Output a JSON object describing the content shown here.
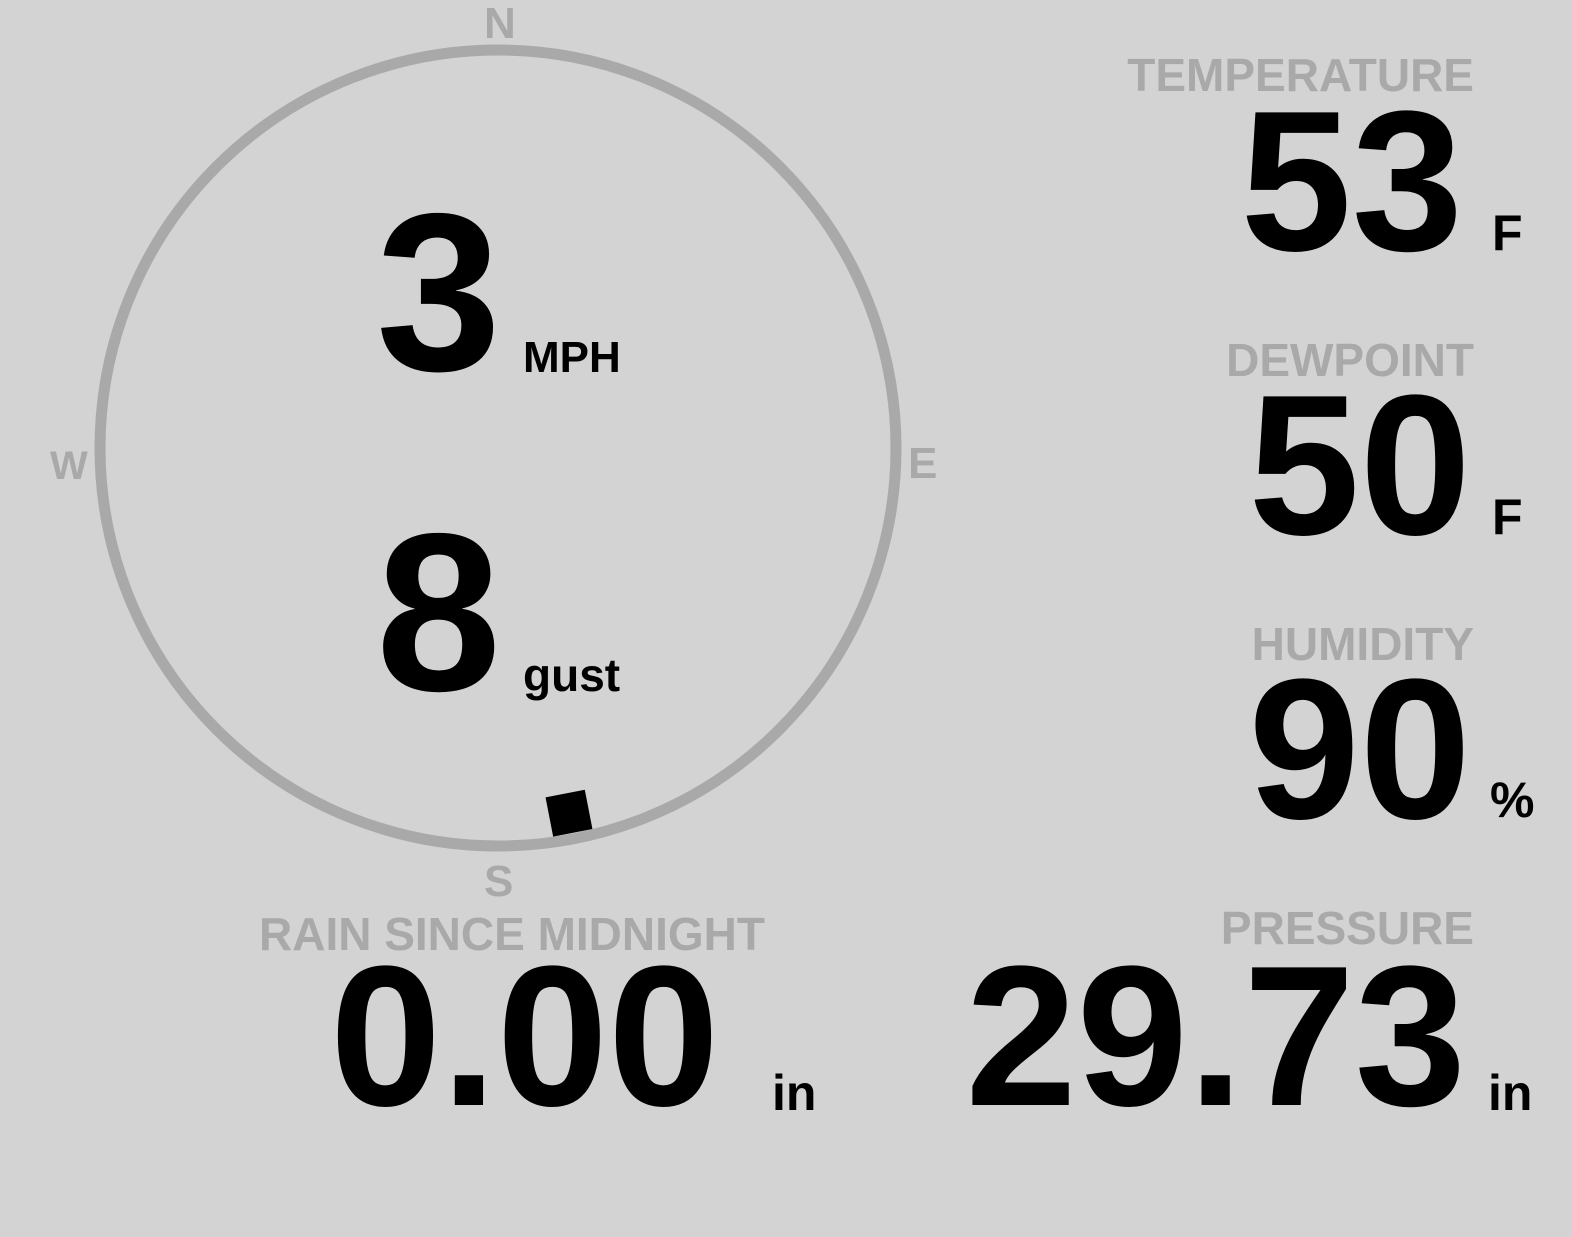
{
  "compass": {
    "north": "N",
    "south": "S",
    "east": "E",
    "west": "W",
    "wind_direction_deg": 169,
    "ring_color": "#a9a9a9",
    "marker_color": "#000000"
  },
  "wind": {
    "speed": "3",
    "speed_unit": "MPH",
    "gust": "8",
    "gust_label": "gust"
  },
  "temperature": {
    "label": "TEMPERATURE",
    "value": "53",
    "unit": "F"
  },
  "dewpoint": {
    "label": "DEWPOINT",
    "value": "50",
    "unit": "F"
  },
  "humidity": {
    "label": "HUMIDITY",
    "value": "90",
    "unit": "%"
  },
  "pressure": {
    "label": "PRESSURE",
    "value": "29.73",
    "unit": "in"
  },
  "rain": {
    "label": "RAIN SINCE MIDNIGHT",
    "value": "0.00",
    "unit": "in"
  },
  "colors": {
    "background": "#d3d3d3",
    "label": "#a9a9a9",
    "value": "#000000"
  }
}
